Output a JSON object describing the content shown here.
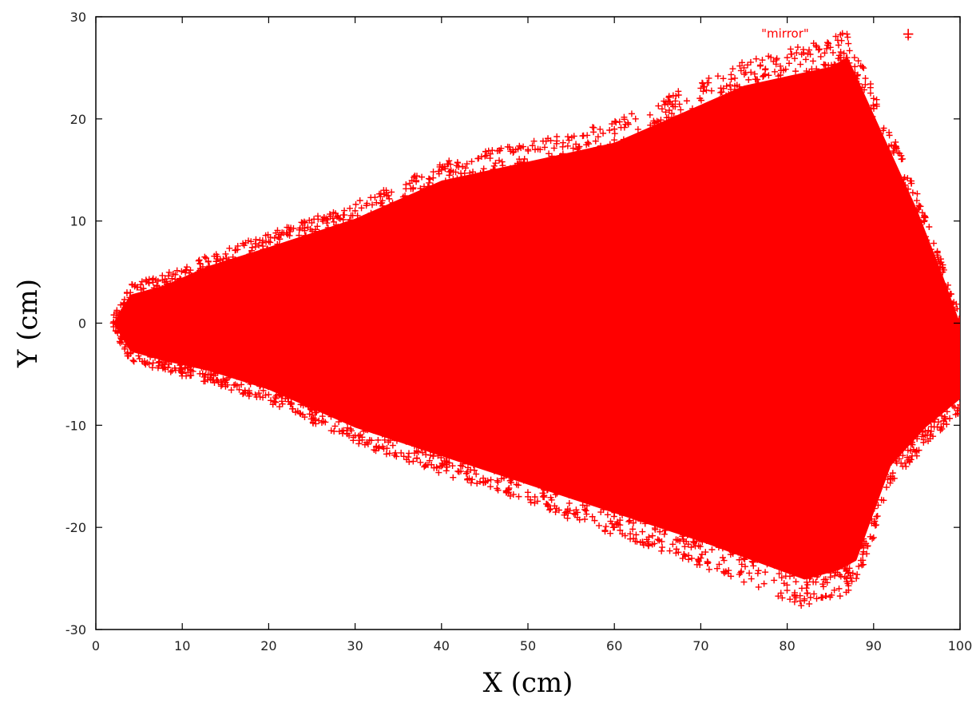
{
  "chart_data": {
    "type": "scatter",
    "xlabel": "X (cm)",
    "ylabel": "Y (cm)",
    "xlim": [
      0,
      100
    ],
    "ylim": [
      -30,
      30
    ],
    "x_ticks": [
      0,
      10,
      20,
      30,
      40,
      50,
      60,
      70,
      80,
      90,
      100
    ],
    "y_ticks": [
      -30,
      -20,
      -10,
      0,
      10,
      20,
      30
    ],
    "grid": false,
    "legend_position": "top-right",
    "marker": "+",
    "series": [
      {
        "name": "\"mirror\"",
        "color": "#ff0000",
        "description_of_extent": "dense cloud of points forming a wedge from x≈2 (y≈0) widening to |y|≈27 near x≈85, ending at x≈100",
        "points": [
          [
            2,
            0
          ],
          [
            4,
            3
          ],
          [
            4,
            -3
          ],
          [
            8,
            4
          ],
          [
            8,
            -4
          ],
          [
            13,
            6
          ],
          [
            13,
            -5
          ],
          [
            20,
            8
          ],
          [
            20,
            -7
          ],
          [
            30,
            11
          ],
          [
            30,
            -11
          ],
          [
            40,
            15
          ],
          [
            40,
            -14
          ],
          [
            50,
            17
          ],
          [
            50,
            -17
          ],
          [
            60,
            19
          ],
          [
            60,
            -20
          ],
          [
            70,
            23
          ],
          [
            70,
            -23
          ],
          [
            75,
            25
          ],
          [
            80,
            26
          ],
          [
            82,
            -27
          ],
          [
            85,
            27
          ],
          [
            87,
            28
          ],
          [
            88,
            -25
          ],
          [
            90,
            22
          ],
          [
            90,
            -21
          ],
          [
            94,
            28
          ],
          [
            95,
            12
          ],
          [
            95,
            -13
          ],
          [
            98,
            5
          ],
          [
            100,
            0
          ],
          [
            100,
            -8
          ],
          [
            92,
            -15
          ],
          [
            96,
            -11
          ],
          [
            86,
            -26
          ]
        ]
      }
    ]
  }
}
